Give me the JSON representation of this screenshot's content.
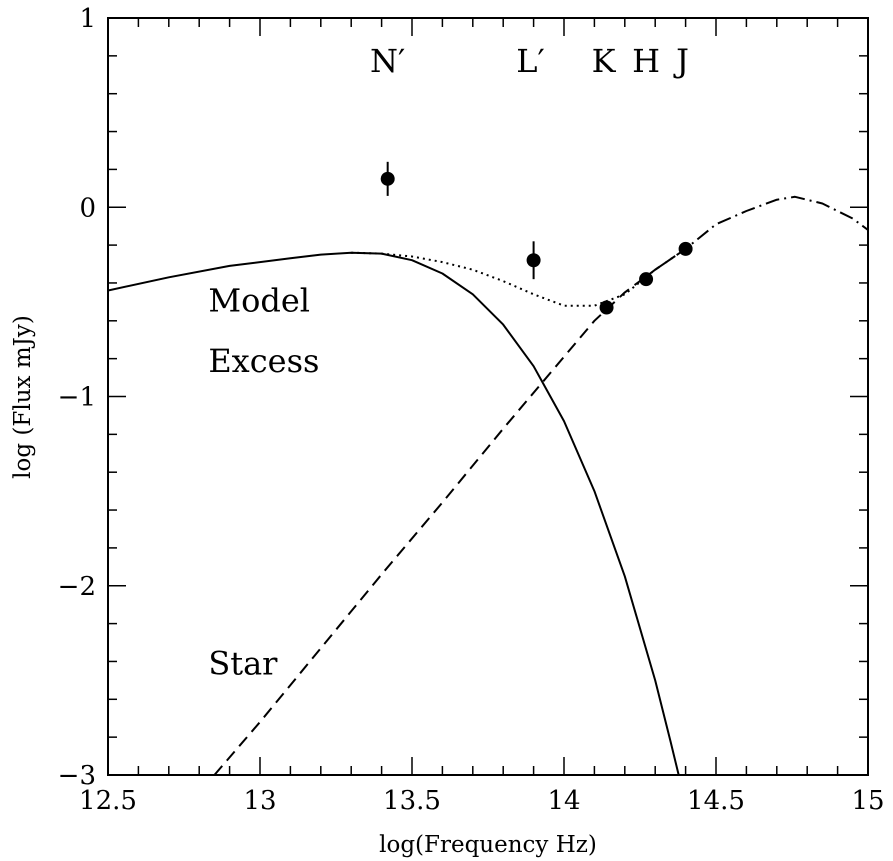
{
  "chart_data": {
    "type": "scatter",
    "title": "",
    "xlabel": "log(Frequency Hz)",
    "ylabel": "log (Flux mJy)",
    "xlim": [
      12.5,
      15.0
    ],
    "ylim": [
      -3.0,
      1.0
    ],
    "x_ticks": [
      "12.5",
      "13",
      "13.5",
      "14",
      "14.5",
      "15"
    ],
    "y_ticks": [
      "−3",
      "−2",
      "−1",
      "0",
      "1"
    ],
    "x_tick_values": [
      12.5,
      13.0,
      13.5,
      14.0,
      14.5,
      15.0
    ],
    "y_tick_values": [
      -3,
      -2,
      -1,
      0,
      1
    ],
    "grid": false,
    "band_labels": [
      {
        "text": "N′",
        "x": 13.42
      },
      {
        "text": "L′",
        "x": 13.89
      },
      {
        "text": "K",
        "x": 14.13
      },
      {
        "text": "H",
        "x": 14.27
      },
      {
        "text": "J",
        "x": 14.39
      }
    ],
    "annotations": [
      {
        "text": "Model",
        "x": 12.83,
        "y": -0.55
      },
      {
        "text": "Excess",
        "x": 12.83,
        "y": -0.87
      },
      {
        "text": "Star",
        "x": 12.83,
        "y": -2.47
      }
    ],
    "series": [
      {
        "style": "points-with-errorbars",
        "x": [
          13.42,
          13.9,
          14.14,
          14.27,
          14.4
        ],
        "y": [
          0.15,
          -0.28,
          -0.53,
          -0.38,
          -0.22
        ],
        "yerr": [
          0.09,
          0.1,
          0.02,
          0.02,
          0.02
        ]
      },
      {
        "style": "solid",
        "x": [
          12.5,
          12.7,
          12.9,
          13.1,
          13.2,
          13.3,
          13.4,
          13.5,
          13.6,
          13.7,
          13.8,
          13.9,
          14.0,
          14.1,
          14.2,
          14.3,
          14.35,
          14.4,
          14.45
        ],
        "y": [
          -0.44,
          -0.37,
          -0.31,
          -0.27,
          -0.25,
          -0.24,
          -0.245,
          -0.28,
          -0.35,
          -0.46,
          -0.62,
          -0.84,
          -1.13,
          -1.5,
          -1.95,
          -2.5,
          -2.82,
          -3.15,
          -3.5
        ]
      },
      {
        "style": "dashed",
        "x": [
          12.85,
          13.0,
          13.2,
          13.4,
          13.6,
          13.8,
          14.0,
          14.1,
          14.2,
          14.3,
          14.4
        ],
        "y": [
          -3.0,
          -2.72,
          -2.33,
          -1.94,
          -1.56,
          -1.17,
          -0.79,
          -0.6,
          -0.45,
          -0.33,
          -0.22
        ]
      },
      {
        "style": "dotted",
        "x": [
          13.3,
          13.4,
          13.5,
          13.6,
          13.7,
          13.8,
          13.9,
          14.0,
          14.1,
          14.2,
          14.3
        ],
        "y": [
          -0.24,
          -0.245,
          -0.26,
          -0.29,
          -0.33,
          -0.39,
          -0.46,
          -0.52,
          -0.52,
          -0.46,
          -0.33
        ]
      },
      {
        "style": "dash-dot",
        "x": [
          14.3,
          14.4,
          14.5,
          14.6,
          14.7,
          14.76,
          14.85,
          14.95,
          15.0
        ],
        "y": [
          -0.33,
          -0.22,
          -0.09,
          -0.02,
          0.04,
          0.055,
          0.02,
          -0.06,
          -0.12
        ]
      }
    ]
  }
}
